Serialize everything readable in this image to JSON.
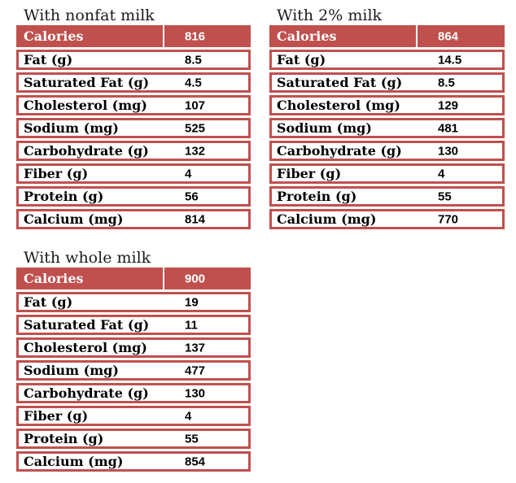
{
  "colors": {
    "accent": "#C0504D",
    "header_text": "#FFFFFF",
    "body_text": "#000000",
    "background": "#FFFFFF"
  },
  "tables": [
    {
      "title": "With nonfat milk",
      "header": {
        "label": "Calories",
        "value": "816"
      },
      "rows": [
        {
          "label": "Fat (g)",
          "value": "8.5"
        },
        {
          "label": "Saturated Fat (g)",
          "value": "4.5"
        },
        {
          "label": "Cholesterol (mg)",
          "value": "107"
        },
        {
          "label": "Sodium (mg)",
          "value": "525"
        },
        {
          "label": "Carbohydrate (g)",
          "value": "132"
        },
        {
          "label": "Fiber (g)",
          "value": "4"
        },
        {
          "label": "Protein (g)",
          "value": "56"
        },
        {
          "label": "Calcium (mg)",
          "value": "814"
        }
      ]
    },
    {
      "title": "With 2% milk",
      "header": {
        "label": "Calories",
        "value": "864"
      },
      "rows": [
        {
          "label": "Fat (g)",
          "value": "14.5"
        },
        {
          "label": "Saturated Fat (g)",
          "value": "8.5"
        },
        {
          "label": "Cholesterol (mg)",
          "value": "129"
        },
        {
          "label": "Sodium (mg)",
          "value": "481"
        },
        {
          "label": "Carbohydrate (g)",
          "value": "130"
        },
        {
          "label": "Fiber (g)",
          "value": "4"
        },
        {
          "label": "Protein (g)",
          "value": "55"
        },
        {
          "label": "Calcium (mg)",
          "value": "770"
        }
      ]
    },
    {
      "title": "With whole milk",
      "header": {
        "label": "Calories",
        "value": "900"
      },
      "rows": [
        {
          "label": "Fat (g)",
          "value": "19"
        },
        {
          "label": "Saturated Fat (g)",
          "value": "11"
        },
        {
          "label": "Cholesterol (mg)",
          "value": "137"
        },
        {
          "label": "Sodium (mg)",
          "value": "477"
        },
        {
          "label": "Carbohydrate (g)",
          "value": "130"
        },
        {
          "label": "Fiber (g)",
          "value": "4"
        },
        {
          "label": "Protein (g)",
          "value": "55"
        },
        {
          "label": "Calcium (mg)",
          "value": "854"
        }
      ]
    }
  ]
}
